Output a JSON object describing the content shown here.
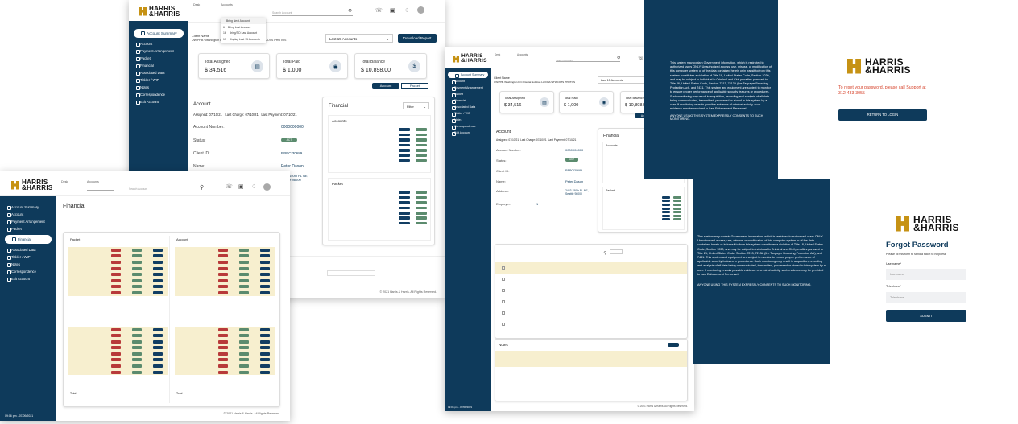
{
  "brand": {
    "line1": "HARRIS",
    "line2": "&HARRIS"
  },
  "nav": {
    "account_summary": "Account Summary",
    "account": "Account",
    "payment_arrangement": "Payment Arrangement",
    "packet": "Packet",
    "financial": "Financial",
    "associated_data": "Associated Data",
    "tickler_wip": "Tickler / WIP",
    "notes": "Notes",
    "correspondence": "Correspondence",
    "exit_account": "Exit Account"
  },
  "header": {
    "desk_label": "Desk",
    "accounts_label": "Accounts",
    "search_placeholder": "Search Account"
  },
  "dropdown": {
    "items": [
      {
        "num": "",
        "label": "Bring Next Account"
      },
      {
        "num": "6",
        "label": "Bring Last Account"
      },
      {
        "num": "16",
        "label": "Bring/T.D Last Account"
      },
      {
        "num": "17",
        "label": "Display Last 15 Accounts"
      }
    ]
  },
  "summary": {
    "client_name_label": "Client Name",
    "client_name": "UW/PHB Washington D.C. Dental Solution Ltd DBA WHACOTS PHOTOS",
    "select_value": "Last 15 Accounts",
    "download_button": "Download Report",
    "total_assigned_label": "Total Assigned",
    "total_assigned": "$ 34,516",
    "total_paid_label": "Total Paid",
    "total_paid": "$ 1,000",
    "total_balance_label": "Total Balance",
    "total_balance": "$ 10,898.00",
    "account_tab": "Account",
    "packet_tab": "Packet"
  },
  "account": {
    "title": "Account",
    "assigned": "Assigned: 07/10/21",
    "last_charge": "Last Charge: 07/10/21",
    "last_payment": "Last Payment: 07/10/21",
    "number_label": "Account Number:",
    "number": "0000000000",
    "status_label": "Status:",
    "status": "ACT",
    "client_id_label": "Client ID:",
    "client_id": "RBPCI30689",
    "name_label": "Name:",
    "name": "Peter Dason",
    "address_label": "Address:",
    "address": "2463 150th PL NE, Seattle 98000",
    "employer_label": "Employer:",
    "employer": "1"
  },
  "financial": {
    "title": "Financial",
    "filter": "Filter",
    "accounts_title": "Accounts",
    "packet_title": "Packet",
    "page_title": "Financial",
    "col_packet": "Packet",
    "col_account": "Account",
    "total_label": "Total"
  },
  "notes": {
    "title": "Notes"
  },
  "footer": {
    "copyright": "© 2021 Harris & Harris. All Rights Reserved.",
    "timestamp": "09:06 pm - 07/09/2021"
  },
  "legal": {
    "p1": "This system may contain Government information, which is restricted to authorized users ONLY. Unauthorized access, use, misuse, or modification of this computer system or of the data contained herein or in transit to/from this system constitutes a violation of Title 18, United States Code, Section 1030, and may be subject to individual in Criminal and Civil penalties pursuant to Title 26, United States Code, Section 7213, 7213A (the Taxpayer Browsing Protection Act), and 7431. This system and equipment are subject to monitor to ensure proper performance of applicable security features or procedures. Such monitoring may result in acquisition, recording and analysis of all data being communicated, transmitted, processed or stored in this system by a user. If monitoring reveals possible evidence of criminal activity, such evidence may be provided to Law Enforcement Personnel.",
    "p2": "ANYONE USING THIS SYSTEM EXPRESSLY CONSENTS TO SUCH MONITORING."
  },
  "reset": {
    "message": "To reset your password, please call Support at 312-433-3055",
    "button": "RETURN TO LOGIN"
  },
  "forgot": {
    "title": "Forgot Password",
    "subtitle": "Please fill this form to send a ticket to helpdesk",
    "username_label": "Username*",
    "username_placeholder": "Username",
    "telephone_label": "Telephone*",
    "telephone_placeholder": "Telephone",
    "submit": "SUBMIT"
  },
  "colors": {
    "navy": "#0e3a5b",
    "gold": "#c69214",
    "green": "#5b8b6e",
    "red": "#b83a3a",
    "highlight": "#f7efcf"
  }
}
